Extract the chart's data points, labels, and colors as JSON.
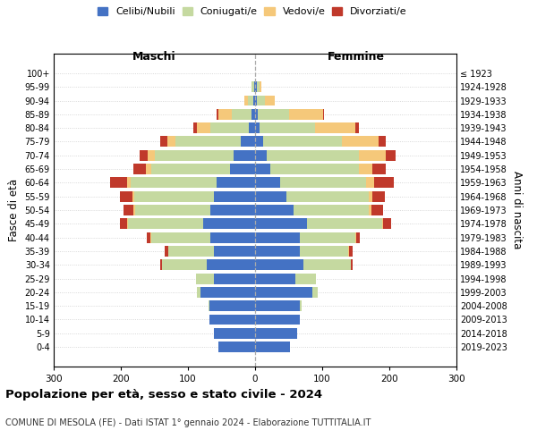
{
  "age_groups": [
    "0-4",
    "5-9",
    "10-14",
    "15-19",
    "20-24",
    "25-29",
    "30-34",
    "35-39",
    "40-44",
    "45-49",
    "50-54",
    "55-59",
    "60-64",
    "65-69",
    "70-74",
    "75-79",
    "80-84",
    "85-89",
    "90-94",
    "95-99",
    "100+"
  ],
  "birth_years": [
    "2019-2023",
    "2014-2018",
    "2009-2013",
    "2004-2008",
    "1999-2003",
    "1994-1998",
    "1989-1993",
    "1984-1988",
    "1979-1983",
    "1974-1978",
    "1969-1973",
    "1964-1968",
    "1959-1963",
    "1954-1958",
    "1949-1953",
    "1944-1948",
    "1939-1943",
    "1934-1938",
    "1929-1933",
    "1924-1928",
    "≤ 1923"
  ],
  "maschi": {
    "celibi": [
      55,
      62,
      68,
      68,
      82,
      62,
      72,
      62,
      67,
      77,
      67,
      62,
      58,
      37,
      32,
      22,
      10,
      5,
      3,
      2,
      0
    ],
    "coniugati": [
      0,
      0,
      0,
      1,
      5,
      26,
      67,
      67,
      88,
      112,
      112,
      118,
      128,
      118,
      118,
      97,
      57,
      30,
      8,
      3,
      0
    ],
    "vedovi": [
      0,
      0,
      0,
      0,
      0,
      0,
      0,
      1,
      1,
      2,
      2,
      3,
      5,
      8,
      10,
      12,
      20,
      20,
      5,
      0,
      0
    ],
    "divorziati": [
      0,
      0,
      0,
      0,
      0,
      0,
      3,
      5,
      5,
      10,
      15,
      18,
      25,
      18,
      12,
      10,
      5,
      2,
      0,
      0,
      0
    ]
  },
  "femmine": {
    "nubili": [
      52,
      62,
      67,
      67,
      85,
      60,
      72,
      67,
      67,
      77,
      57,
      47,
      37,
      22,
      17,
      12,
      7,
      4,
      2,
      2,
      0
    ],
    "coniugate": [
      0,
      0,
      0,
      2,
      8,
      30,
      70,
      72,
      82,
      112,
      112,
      122,
      128,
      132,
      137,
      117,
      82,
      47,
      12,
      4,
      0
    ],
    "vedove": [
      0,
      0,
      0,
      0,
      0,
      0,
      0,
      1,
      2,
      2,
      4,
      6,
      12,
      20,
      40,
      55,
      60,
      50,
      15,
      3,
      0
    ],
    "divorziate": [
      0,
      0,
      0,
      0,
      0,
      0,
      3,
      5,
      5,
      12,
      18,
      18,
      30,
      20,
      15,
      10,
      5,
      2,
      0,
      0,
      0
    ]
  },
  "colors": {
    "celibi": "#4472C4",
    "coniugati": "#c5d9a0",
    "vedovi": "#f5c87a",
    "divorziati": "#c0392b"
  },
  "title": "Popolazione per età, sesso e stato civile - 2024",
  "subtitle": "COMUNE DI MESOLA (FE) - Dati ISTAT 1° gennaio 2024 - Elaborazione TUTTITALIA.IT",
  "xlabel_left": "Maschi",
  "xlabel_right": "Femmine",
  "ylabel_left": "Fasce di età",
  "ylabel_right": "Anni di nascita",
  "xlim": 300,
  "legend_labels": [
    "Celibi/Nubili",
    "Coniugati/e",
    "Vedovi/e",
    "Divorziati/e"
  ]
}
